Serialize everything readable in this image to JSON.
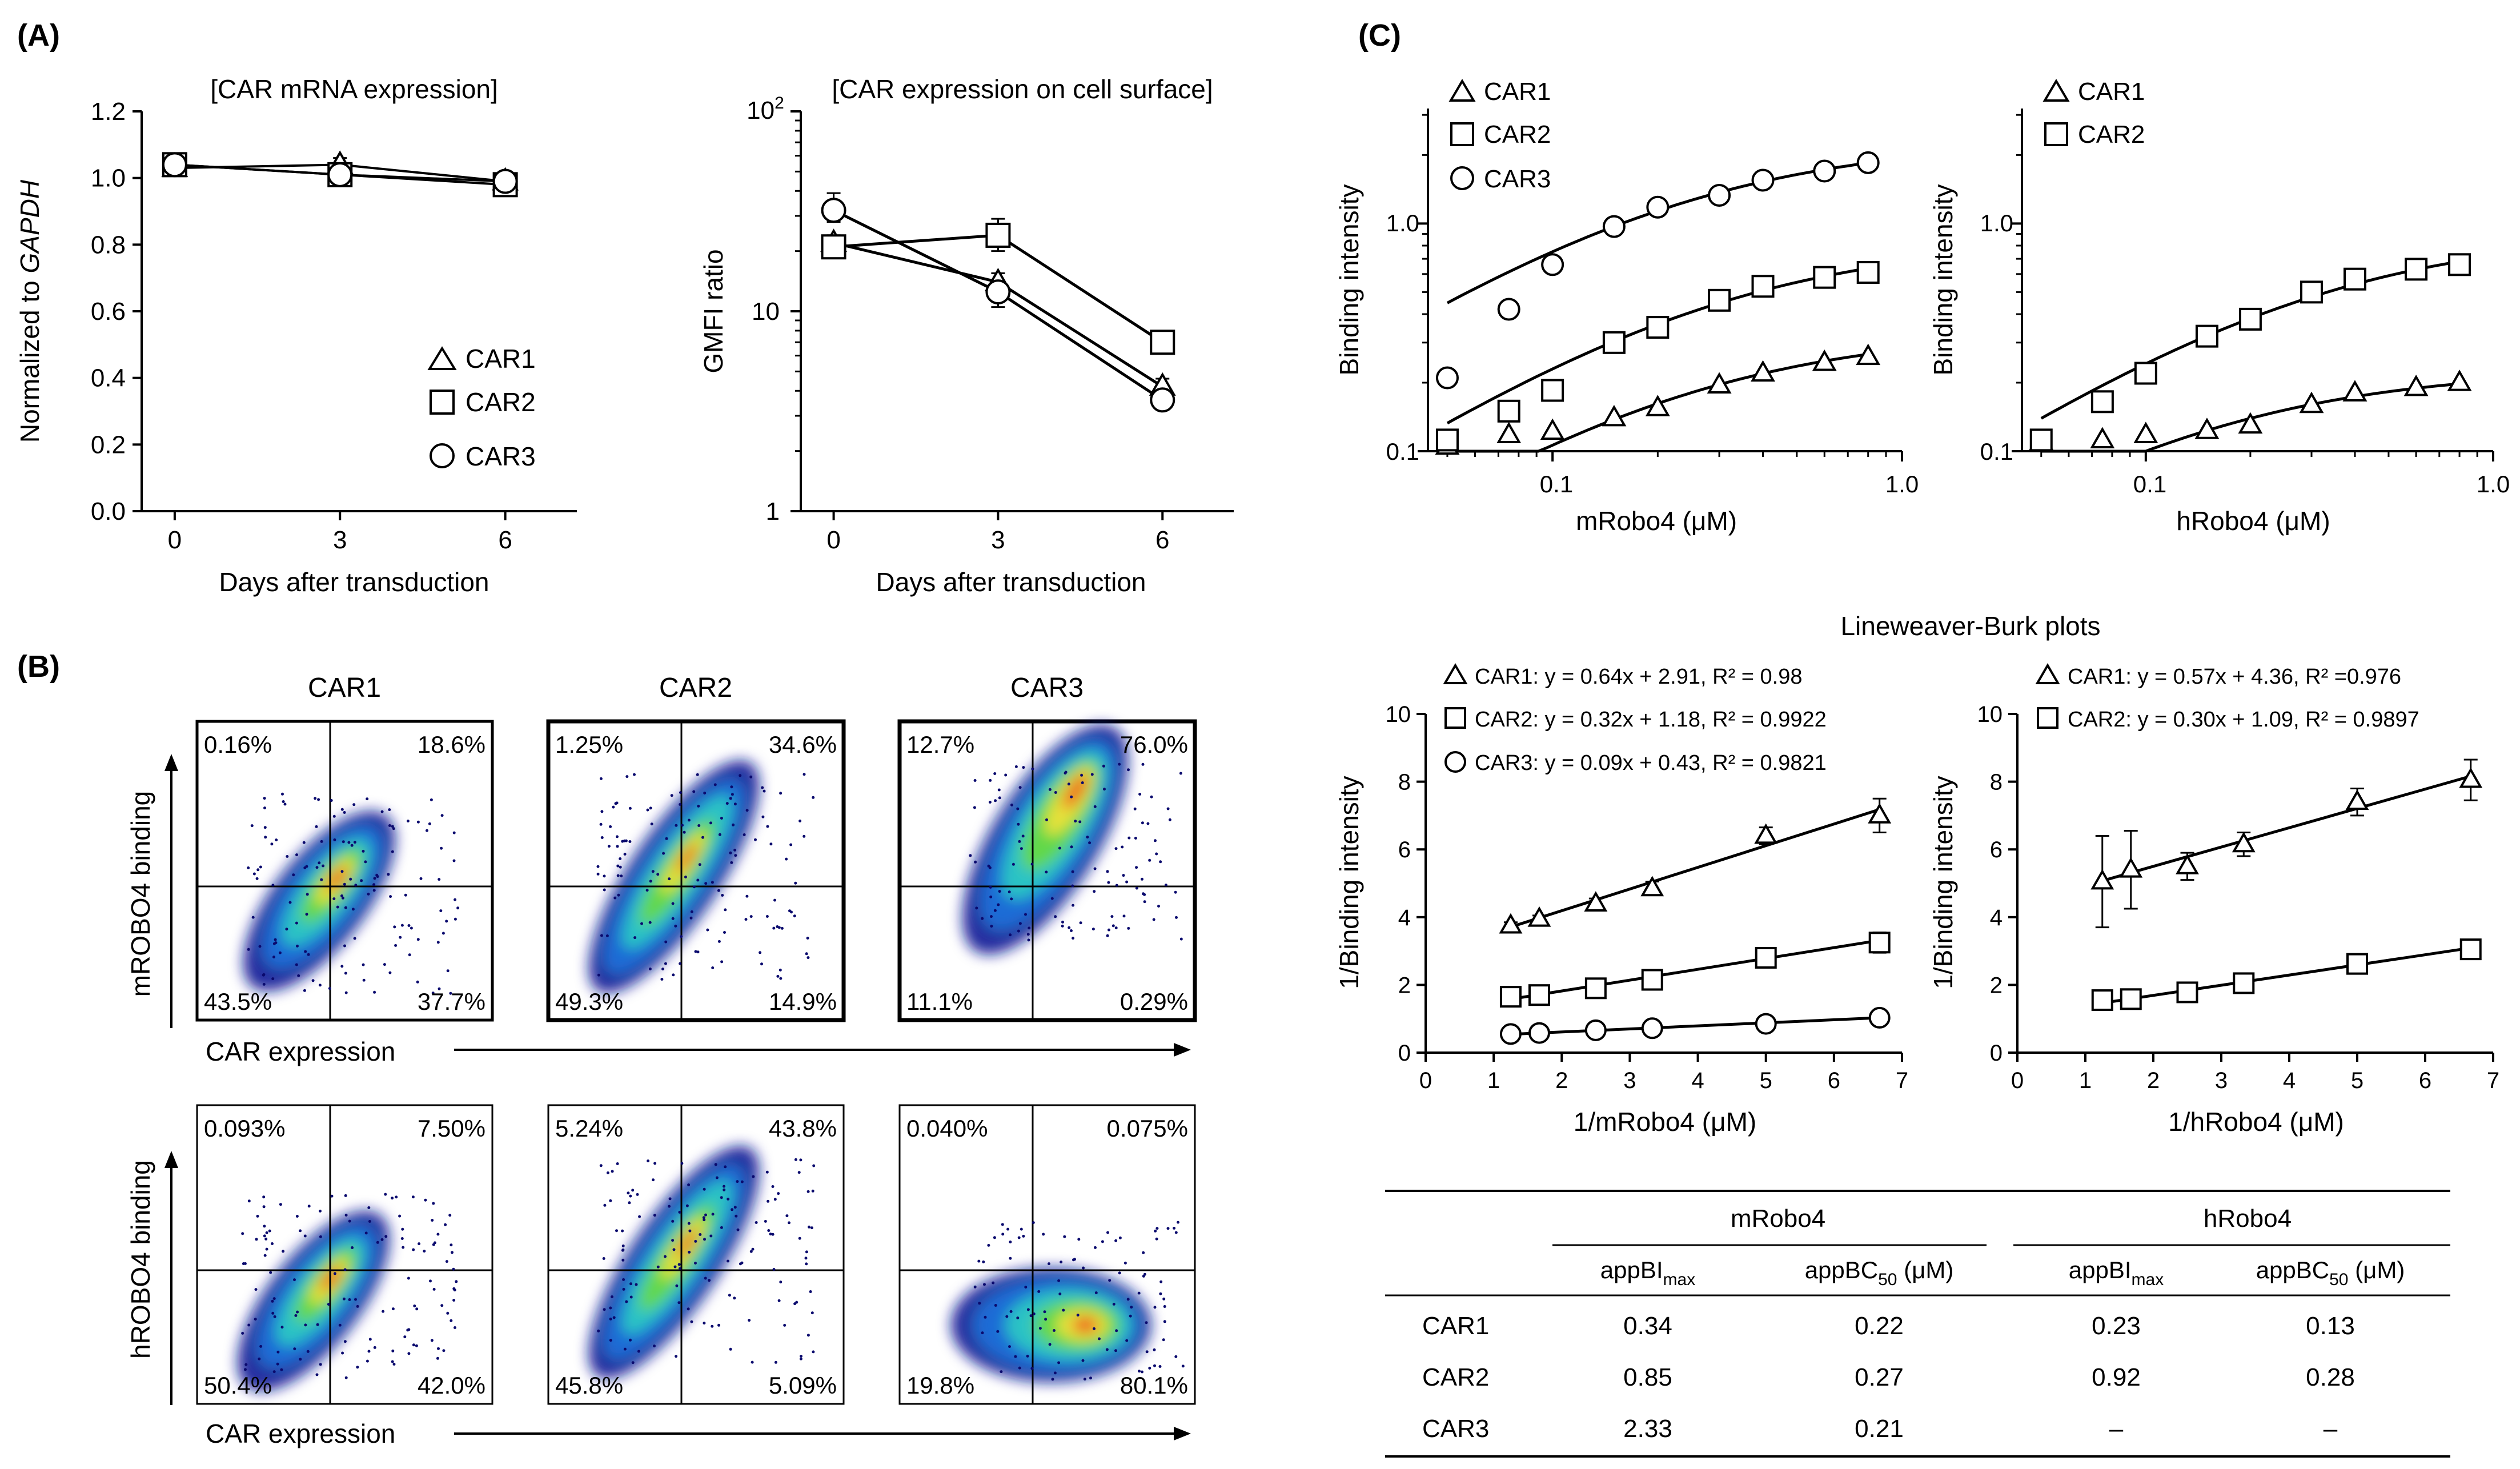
{
  "chart_data": {
    "type": "figure",
    "panels": {
      "A": {
        "label": "(A)",
        "mrna": {
          "type": "line",
          "title": "[CAR mRNA expression]",
          "ylabel_prefix": "Normalized to ",
          "ylabel_gene": "GAPDH",
          "xlabel": "Days after transduction",
          "xlim": [
            -0.6,
            7.3
          ],
          "ylim": [
            0,
            1.2
          ],
          "xticks": [
            0,
            3,
            6
          ],
          "yticks": [
            0.0,
            0.2,
            0.4,
            0.6,
            0.8,
            1.0,
            1.2
          ],
          "ytick_labels": [
            "0.0",
            "0.2",
            "0.4",
            "0.6",
            "0.8",
            "1.0",
            "1.2"
          ],
          "x": [
            0,
            3,
            6
          ],
          "series": [
            {
              "name": "CAR1",
              "marker": "triangle",
              "values": [
                1.03,
                1.04,
                0.99
              ],
              "err": [
                0.02,
                0.02,
                0.01
              ]
            },
            {
              "name": "CAR2",
              "marker": "square",
              "values": [
                1.04,
                1.01,
                0.98
              ],
              "err": [
                0.02,
                0.02,
                0.01
              ]
            },
            {
              "name": "CAR3",
              "marker": "circle",
              "values": [
                1.04,
                1.01,
                0.99
              ],
              "err": [
                0.02,
                0.01,
                0.01
              ]
            }
          ],
          "legend": [
            "CAR1",
            "CAR2",
            "CAR3"
          ]
        },
        "surface": {
          "type": "line",
          "scale": "log",
          "title": "[CAR expression on cell surface]",
          "ylabel": "GMFI ratio",
          "xlabel": "Days after transduction",
          "xlim": [
            -0.6,
            7.3
          ],
          "ylim_log": [
            0,
            2
          ],
          "xticks": [
            0,
            3,
            6
          ],
          "ytick_labels": {
            "base": "10",
            "sup": "2",
            "ten": "10",
            "one": "1"
          },
          "x": [
            0,
            3,
            6
          ],
          "series": [
            {
              "name": "CAR1",
              "marker": "triangle",
              "values": [
                22,
                14,
                4.2
              ],
              "err_lo": [
                18.5,
                11.8,
                3.9
              ],
              "err_hi": [
                24,
                15.5,
                4.6
              ]
            },
            {
              "name": "CAR2",
              "marker": "square",
              "values": [
                21,
                24,
                7.0
              ],
              "err_lo": [
                19,
                20,
                6.7
              ],
              "err_hi": [
                23,
                29,
                7.3
              ]
            },
            {
              "name": "CAR3",
              "marker": "circle",
              "values": [
                32,
                12.5,
                3.6
              ],
              "err_lo": [
                28,
                10.5,
                3.3
              ],
              "err_hi": [
                39,
                14,
                3.9
              ]
            }
          ]
        }
      },
      "B": {
        "label": "(B)",
        "columns": [
          "CAR1",
          "CAR2",
          "CAR3"
        ],
        "row_ylabels": [
          "mROBO4 binding",
          "hROBO4 binding"
        ],
        "xlabel": "CAR expression",
        "quadrants": [
          [
            {
              "ul": "0.16%",
              "ur": "18.6%",
              "ll": "43.5%",
              "lr": "37.7%"
            },
            {
              "ul": "1.25%",
              "ur": "34.6%",
              "ll": "49.3%",
              "lr": "14.9%"
            },
            {
              "ul": "12.7%",
              "ur": "76.0%",
              "ll": "11.1%",
              "lr": "0.29%"
            }
          ],
          [
            {
              "ul": "0.093%",
              "ur": "7.50%",
              "ll": "50.4%",
              "lr": "42.0%"
            },
            {
              "ul": "5.24%",
              "ur": "43.8%",
              "ll": "45.8%",
              "lr": "5.09%"
            },
            {
              "ul": "0.040%",
              "ur": "0.075%",
              "ll": "19.8%",
              "lr": "80.1%"
            }
          ]
        ]
      },
      "C": {
        "label": "(C)",
        "m_binding": {
          "type": "scatter",
          "scale": "log-log",
          "ylabel": "Binding intensity",
          "xlabel": "mRobo4 (μM)",
          "xlim": [
            0.044,
            1.0
          ],
          "ylim": [
            0.1,
            3.2
          ],
          "xtick_labels": [
            "0.1",
            "1.0"
          ],
          "ytick_labels": [
            "0.1",
            "1.0"
          ],
          "x": [
            0.05,
            0.075,
            0.1,
            0.15,
            0.2,
            0.3,
            0.4,
            0.6,
            0.8
          ],
          "series": [
            {
              "name": "CAR1",
              "marker": "triangle",
              "values": [
                0.105,
                0.118,
                0.122,
                0.14,
                0.155,
                0.195,
                0.22,
                0.245,
                0.26
              ],
              "bmax": 0.34,
              "bc50": 0.22
            },
            {
              "name": "CAR2",
              "marker": "square",
              "values": [
                0.112,
                0.15,
                0.185,
                0.3,
                0.35,
                0.46,
                0.53,
                0.58,
                0.61
              ],
              "bmax": 0.85,
              "bc50": 0.27
            },
            {
              "name": "CAR3",
              "marker": "circle",
              "values": [
                0.21,
                0.42,
                0.66,
                0.97,
                1.18,
                1.33,
                1.55,
                1.7,
                1.85
              ],
              "bmax": 2.33,
              "bc50": 0.21
            }
          ],
          "legend": [
            "CAR1",
            "CAR2",
            "CAR3"
          ]
        },
        "h_binding": {
          "type": "scatter",
          "scale": "log-log",
          "ylabel": "Binding intensity",
          "xlabel": "hRobo4 (μM)",
          "xlim": [
            0.044,
            1.0
          ],
          "ylim": [
            0.1,
            3.2
          ],
          "xtick_labels": [
            "0.1",
            "1.0"
          ],
          "ytick_labels": [
            "0.1",
            "1.0"
          ],
          "x": [
            0.05,
            0.075,
            0.1,
            0.15,
            0.2,
            0.3,
            0.4,
            0.6,
            0.8
          ],
          "series": [
            {
              "name": "CAR1",
              "marker": "triangle",
              "values": [
                0.11,
                0.112,
                0.118,
                0.123,
                0.13,
                0.16,
                0.18,
                0.19,
                0.2
              ],
              "bmax": 0.23,
              "bc50": 0.13
            },
            {
              "name": "CAR2",
              "marker": "square",
              "values": [
                0.112,
                0.165,
                0.22,
                0.32,
                0.38,
                0.5,
                0.57,
                0.63,
                0.66
              ],
              "bmax": 0.92,
              "bc50": 0.28
            }
          ],
          "legend": [
            "CAR1",
            "CAR2"
          ]
        },
        "lb_title": "Lineweaver-Burk plots",
        "m_lb": {
          "type": "scatter",
          "ylabel": "1/Binding intensity",
          "xlabel": "1/mRobo4 (μM)",
          "xlim": [
            0,
            7
          ],
          "ylim": [
            0,
            10
          ],
          "xticks": [
            0,
            1,
            2,
            3,
            4,
            5,
            6,
            7
          ],
          "yticks": [
            0,
            2,
            4,
            6,
            8,
            10
          ],
          "x": [
            1.25,
            1.67,
            2.5,
            3.33,
            5,
            6.67
          ],
          "series": [
            {
              "name": "CAR1",
              "marker": "triangle",
              "values": [
                3.75,
                3.95,
                4.4,
                4.85,
                6.4,
                7.0
              ],
              "err": [
                0.1,
                0.1,
                0.15,
                0.2,
                0.25,
                0.5
              ],
              "fit": [
                0.64,
                2.91
              ],
              "equation": "CAR1: y = 0.64x + 2.91, R² = 0.98"
            },
            {
              "name": "CAR2",
              "marker": "square",
              "values": [
                1.65,
                1.7,
                1.9,
                2.15,
                2.8,
                3.25
              ],
              "err": [
                0.05,
                0.05,
                0.05,
                0.1,
                0.1,
                0.3
              ],
              "fit": [
                0.32,
                1.18
              ],
              "equation": "CAR2: y = 0.32x + 1.18, R² = 0.9922"
            },
            {
              "name": "CAR3",
              "marker": "circle",
              "values": [
                0.55,
                0.58,
                0.66,
                0.72,
                0.85,
                1.03
              ],
              "err": [
                0.03,
                0.03,
                0.03,
                0.03,
                0.04,
                0.05
              ],
              "fit": [
                0.09,
                0.43
              ],
              "equation": "CAR3: y = 0.09x + 0.43, R² = 0.9821"
            }
          ]
        },
        "h_lb": {
          "type": "scatter",
          "ylabel": "1/Binding intensity",
          "xlabel": "1/hRobo4 (μM)",
          "xlim": [
            0,
            7
          ],
          "ylim": [
            0,
            10
          ],
          "xticks": [
            0,
            1,
            2,
            3,
            4,
            5,
            6,
            7
          ],
          "yticks": [
            0,
            2,
            4,
            6,
            8,
            10
          ],
          "x": [
            1.25,
            1.67,
            2.5,
            3.33,
            5,
            6.67
          ],
          "series": [
            {
              "name": "CAR1",
              "marker": "triangle",
              "values": [
                5.05,
                5.4,
                5.5,
                6.15,
                7.4,
                8.05
              ],
              "err": [
                1.35,
                1.15,
                0.4,
                0.35,
                0.4,
                0.6
              ],
              "fit": [
                0.57,
                4.36
              ],
              "equation": "CAR1: y = 0.57x + 4.36, R² =0.976"
            },
            {
              "name": "CAR2",
              "marker": "square",
              "values": [
                1.55,
                1.58,
                1.78,
                2.05,
                2.62,
                3.05
              ],
              "err": [
                0.05,
                0.05,
                0.05,
                0.05,
                0.08,
                0.1
              ],
              "fit": [
                0.3,
                1.09
              ],
              "equation": "CAR2: y = 0.30x + 1.09, R² = 0.9897"
            }
          ]
        },
        "table": {
          "type": "table",
          "groups": [
            "mRobo4",
            "hRobo4"
          ],
          "col_main": [
            "appBI",
            "appBC",
            "appBI",
            "appBC"
          ],
          "col_sub": [
            "max",
            "50",
            "max",
            "50"
          ],
          "col_unit": [
            "",
            " (μM)",
            "",
            " (μM)"
          ],
          "rows": [
            {
              "name": "CAR1",
              "cells": [
                "0.34",
                "0.22",
                "0.23",
                "0.13"
              ]
            },
            {
              "name": "CAR2",
              "cells": [
                "0.85",
                "0.27",
                "0.92",
                "0.28"
              ]
            },
            {
              "name": "CAR3",
              "cells": [
                "2.33",
                "0.21",
                "–",
                "–"
              ]
            }
          ]
        }
      }
    }
  }
}
